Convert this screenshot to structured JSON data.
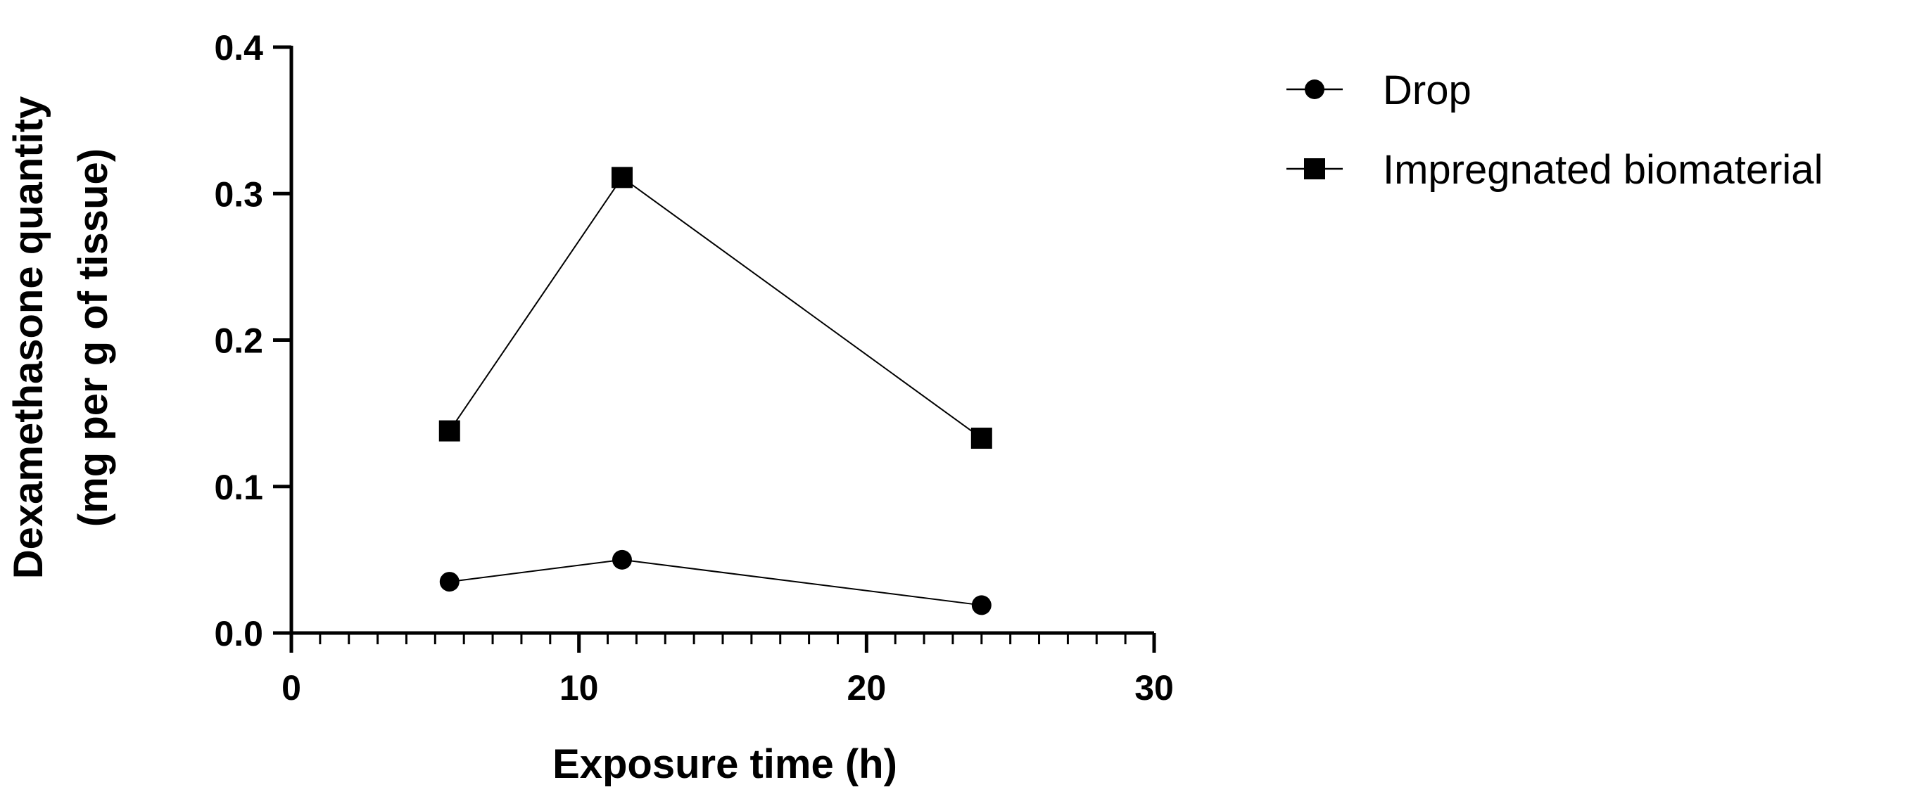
{
  "chart_data": {
    "type": "line",
    "title": "",
    "xlabel": "Exposure time (h)",
    "ylabel_line1": "Dexamethasone quantity",
    "ylabel_line2": "(mg per g of tissue)",
    "xlim": [
      0,
      30
    ],
    "ylim": [
      0,
      0.4
    ],
    "x_major_ticks": [
      0,
      10,
      20,
      30
    ],
    "x_tick_labels": [
      "0",
      "10",
      "20",
      "30"
    ],
    "x_minor_step": 1,
    "y_major_ticks": [
      0,
      0.1,
      0.2,
      0.3,
      0.4
    ],
    "y_tick_labels": [
      "0.0",
      "0.1",
      "0.2",
      "0.3",
      "0.4"
    ],
    "grid": false,
    "legend_position": "top-right, outside plot",
    "series": [
      {
        "name": "Drop",
        "marker": "circle",
        "color": "#000000",
        "x": [
          5.5,
          11.5,
          24
        ],
        "y": [
          0.035,
          0.05,
          0.019
        ]
      },
      {
        "name": "Impregnated biomaterial",
        "marker": "square",
        "color": "#000000",
        "x": [
          5.5,
          11.5,
          24
        ],
        "y": [
          0.138,
          0.311,
          0.133
        ]
      }
    ]
  }
}
